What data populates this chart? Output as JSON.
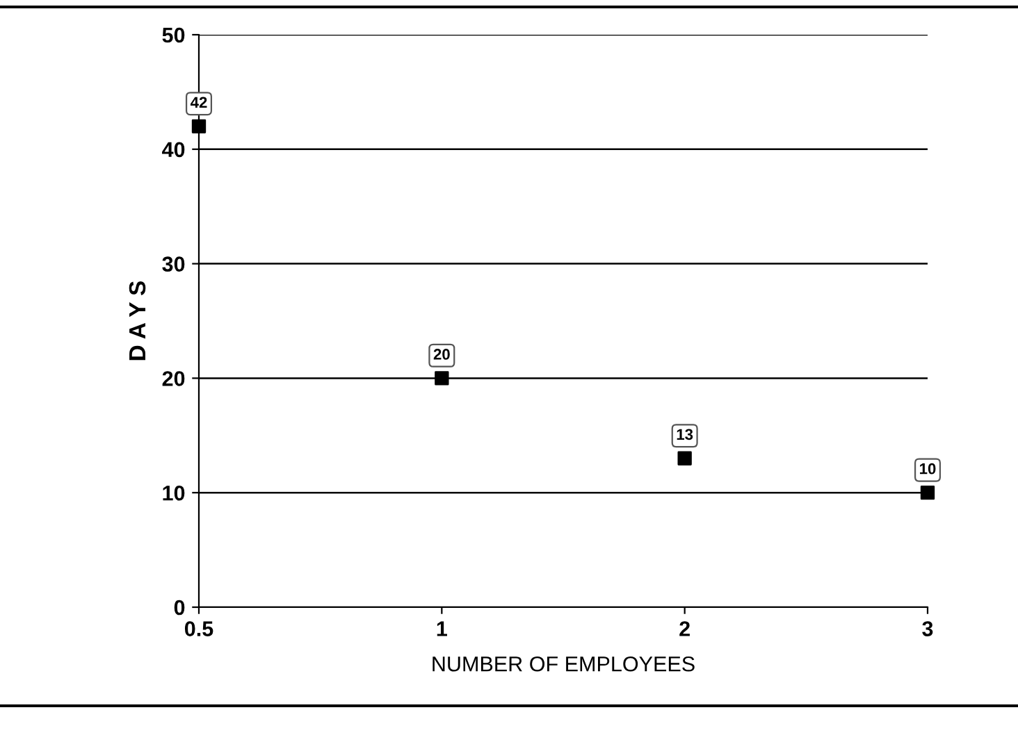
{
  "chart_data": {
    "type": "scatter",
    "xlabel": "NUMBER OF EMPLOYEES",
    "ylabel": "D A Y S",
    "categories": [
      "0.5",
      "1",
      "2",
      "3"
    ],
    "values": [
      42,
      20,
      13,
      10
    ],
    "color": "#000000",
    "marker": "square",
    "data_labels": true,
    "ylim": [
      0,
      50
    ],
    "yticks": [
      0,
      10,
      20,
      30,
      40,
      50
    ],
    "grid": "y"
  }
}
